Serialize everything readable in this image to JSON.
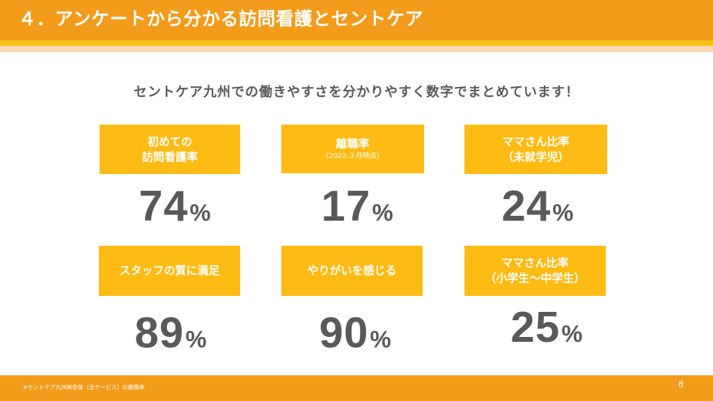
{
  "header": {
    "title": "４．アンケートから分かる訪問看護とセントケア"
  },
  "subtitle": "セントケア九州での働きやすさを分かりやすく数字でまとめています！",
  "stats": [
    {
      "label_lines": [
        "初めての",
        "訪問看護率"
      ],
      "note": "",
      "value": "74",
      "unit": "%"
    },
    {
      "label_lines": [
        "離職率"
      ],
      "note": "（2022.３月時点）",
      "value": "17",
      "unit": "%"
    },
    {
      "label_lines": [
        "ママさん比率",
        "（未就学児）"
      ],
      "note": "",
      "value": "24",
      "unit": "%"
    },
    {
      "label_lines": [
        "スタッフの質に満足"
      ],
      "note": "",
      "value": "89",
      "unit": "%"
    },
    {
      "label_lines": [
        "やりがいを感じる"
      ],
      "note": "",
      "value": "90",
      "unit": "%"
    },
    {
      "label_lines": [
        "ママさん比率",
        "（小学生～中学生）"
      ],
      "note": "",
      "value": "25",
      "unit": "%"
    }
  ],
  "footer": {
    "footnote": "※セントケア九州㈱全体（全サービス）の離職率",
    "page_number": "8"
  },
  "colors": {
    "header": "#f39c1b",
    "accent_band": "#f7c21a",
    "label_box": "#fdbb14",
    "value_text": "#595959"
  }
}
